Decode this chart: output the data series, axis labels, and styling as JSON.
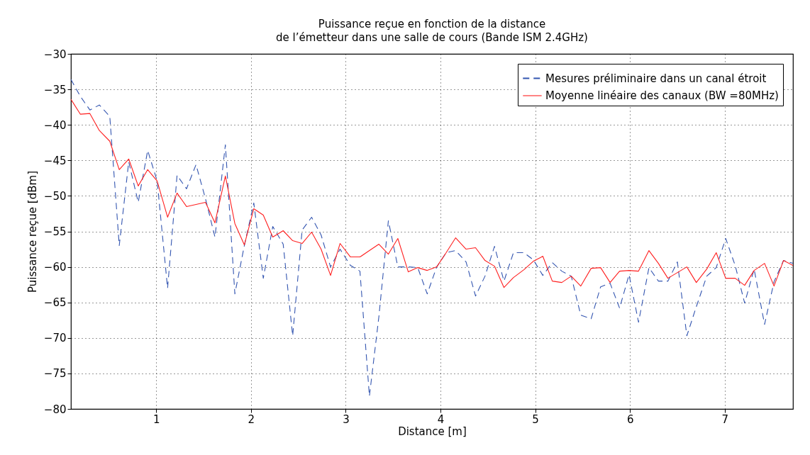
{
  "chart_data": {
    "type": "line",
    "title": "Puissance reçue en fonction de la distance\nde l’émetteur dans une salle de cours (Bande ISM 2.4GHz)",
    "xlabel": "Distance [m]",
    "ylabel": "Puissance reçue [dBm]",
    "x": [
      0.1,
      0.2,
      0.3,
      0.4,
      0.51,
      0.61,
      0.71,
      0.81,
      0.91,
      1.01,
      1.12,
      1.22,
      1.32,
      1.42,
      1.52,
      1.62,
      1.73,
      1.83,
      1.93,
      2.03,
      2.13,
      2.23,
      2.34,
      2.44,
      2.54,
      2.64,
      2.74,
      2.84,
      2.94,
      3.05,
      3.15,
      3.25,
      3.35,
      3.45,
      3.55,
      3.66,
      3.76,
      3.86,
      3.96,
      4.06,
      4.16,
      4.27,
      4.37,
      4.47,
      4.57,
      4.67,
      4.77,
      4.88,
      4.98,
      5.08,
      5.18,
      5.28,
      5.38,
      5.48,
      5.59,
      5.69,
      5.79,
      5.89,
      5.99,
      6.09,
      6.2,
      6.3,
      6.4,
      6.5,
      6.6,
      6.7,
      6.81,
      6.91,
      7.01,
      7.11,
      7.21,
      7.31,
      7.42,
      7.52,
      7.62,
      7.72
    ],
    "series": [
      {
        "name": "Mesures préliminaire dans un canal étroit",
        "color": "#3355b0",
        "line_style": "dashed",
        "values": [
          -33.6,
          -36.0,
          -37.9,
          -37.2,
          -38.8,
          -57.0,
          -45.2,
          -50.9,
          -43.6,
          -47.9,
          -63.0,
          -47.1,
          -49.0,
          -45.6,
          -50.4,
          -55.8,
          -42.8,
          -63.8,
          -57.0,
          -51.0,
          -61.6,
          -54.3,
          -56.8,
          -69.7,
          -54.8,
          -53.0,
          -55.5,
          -60.0,
          -57.5,
          -59.8,
          -60.6,
          -78.2,
          -67.0,
          -53.5,
          -60.0,
          -60.0,
          -60.1,
          -63.8,
          -60.0,
          -58.0,
          -57.7,
          -59.3,
          -64.1,
          -61.3,
          -57.1,
          -62.0,
          -58.0,
          -58.0,
          -59.0,
          -61.2,
          -59.4,
          -60.6,
          -61.3,
          -66.8,
          -67.3,
          -62.8,
          -62.3,
          -65.8,
          -61.1,
          -67.8,
          -60.1,
          -62.0,
          -62.0,
          -59.3,
          -69.7,
          -65.6,
          -61.3,
          -60.1,
          -56.0,
          -59.8,
          -65.1,
          -60.3,
          -68.1,
          -62.1,
          -59.1,
          -59.5
        ]
      },
      {
        "name": "Moyenne linéaire des canaux (BW =80MHz)",
        "color": "#ff2020",
        "line_style": "solid",
        "values": [
          -36.4,
          -38.5,
          -38.4,
          -40.8,
          -42.3,
          -46.3,
          -44.8,
          -48.6,
          -46.3,
          -47.9,
          -53.0,
          -49.6,
          -51.5,
          -51.2,
          -50.9,
          -53.8,
          -47.2,
          -53.9,
          -56.9,
          -51.8,
          -52.7,
          -55.8,
          -54.9,
          -56.3,
          -56.7,
          -55.1,
          -57.5,
          -61.2,
          -56.7,
          -58.6,
          -58.6,
          -57.7,
          -56.8,
          -58.2,
          -56.0,
          -60.7,
          -60.1,
          -60.5,
          -60.0,
          -58.0,
          -55.9,
          -57.5,
          -57.3,
          -59.1,
          -59.9,
          -62.9,
          -61.5,
          -60.4,
          -59.2,
          -58.5,
          -62.0,
          -62.2,
          -61.3,
          -62.7,
          -60.2,
          -60.1,
          -62.2,
          -60.6,
          -60.5,
          -60.6,
          -57.7,
          -59.5,
          -61.6,
          -60.8,
          -60.0,
          -62.2,
          -60.3,
          -58.0,
          -61.6,
          -61.6,
          -62.6,
          -60.5,
          -59.5,
          -62.7,
          -59.1,
          -59.8
        ]
      }
    ],
    "xlim": [
      0.1,
      7.72
    ],
    "xticks": [
      1,
      2,
      3,
      4,
      5,
      6,
      7
    ],
    "ylim": [
      -80,
      -30
    ],
    "yticks": [
      -80,
      -75,
      -70,
      -65,
      -60,
      -55,
      -50,
      -45,
      -40,
      -35,
      -30
    ],
    "grid": true,
    "legend": "top right",
    "marker": "none"
  }
}
